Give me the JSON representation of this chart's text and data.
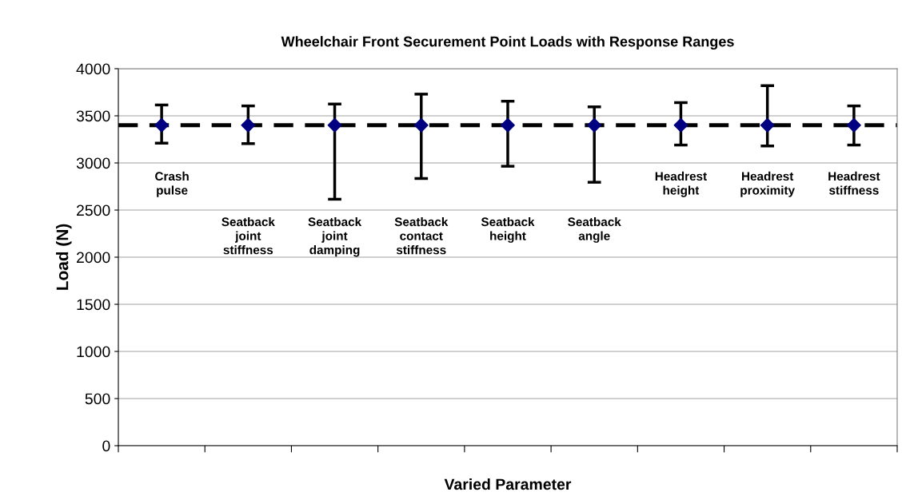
{
  "chart_data": {
    "type": "scatter",
    "title": "Wheelchair Front Securement Point Loads with Response Ranges",
    "xlabel": "Varied Parameter",
    "ylabel": "Load (N)",
    "categories": [
      "Crash\npulse",
      "Seatback\njoint\nstiffness",
      "Seatback\njoint\ndamping",
      "Seatback\ncontact\nstiffness",
      "Seatback\nheight",
      "Seatback\nangle",
      "Headrest\nheight",
      "Headrest\nproximity",
      "Headrest\nstiffness"
    ],
    "series": [
      {
        "color": "#000080",
        "values": [
          3400,
          3400,
          3400,
          3400,
          3400,
          3400,
          3400,
          3400,
          3400
        ],
        "errors": [
          [
            3210,
            3615
          ],
          [
            3205,
            3605
          ],
          [
            2615,
            3625
          ],
          [
            2835,
            3730
          ],
          [
            2965,
            3655
          ],
          [
            2795,
            3595
          ],
          [
            3190,
            3640
          ],
          [
            3180,
            3820
          ],
          [
            3190,
            3605
          ]
        ]
      }
    ],
    "ref_lines": [
      {
        "axis": "y",
        "value": 3400,
        "color": "#000000",
        "line_style": "dashed"
      }
    ],
    "ylim": [
      0,
      4000
    ],
    "yticks": [
      0,
      500,
      1000,
      1500,
      2000,
      2500,
      3000,
      3500,
      4000
    ],
    "grid": "y",
    "marker": "diamond",
    "legend": false
  }
}
